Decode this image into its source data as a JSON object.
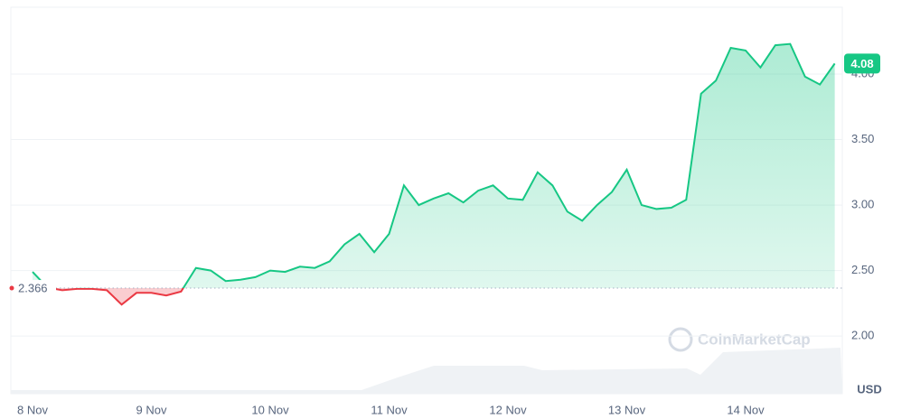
{
  "chart_data": {
    "type": "line",
    "categories": [
      "8 Nov",
      null,
      null,
      null,
      null,
      null,
      null,
      null,
      "9 Nov",
      null,
      null,
      null,
      null,
      null,
      null,
      null,
      "10 Nov",
      null,
      null,
      null,
      null,
      null,
      null,
      null,
      "11 Nov",
      null,
      null,
      null,
      null,
      null,
      null,
      null,
      "12 Nov",
      null,
      null,
      null,
      null,
      null,
      null,
      null,
      "13 Nov",
      null,
      null,
      null,
      null,
      null,
      null,
      null,
      "14 Nov",
      null,
      null,
      null,
      null,
      null,
      null
    ],
    "values": [
      2.49,
      2.37,
      2.35,
      2.36,
      2.36,
      2.35,
      2.24,
      2.33,
      2.33,
      2.31,
      2.34,
      2.52,
      2.5,
      2.42,
      2.43,
      2.45,
      2.5,
      2.49,
      2.53,
      2.52,
      2.57,
      2.7,
      2.78,
      2.64,
      2.78,
      3.15,
      3.0,
      3.05,
      3.09,
      3.02,
      3.11,
      3.15,
      3.05,
      3.04,
      3.25,
      3.15,
      2.95,
      2.88,
      3.0,
      3.1,
      3.27,
      3.0,
      2.97,
      2.98,
      3.04,
      3.85,
      3.95,
      4.2,
      4.18,
      4.05,
      4.22,
      4.23,
      3.98,
      3.92,
      4.08
    ],
    "up_color": "#16c784",
    "down_color": "#ea3943",
    "reference": 2.366,
    "ylim": [
      1.56,
      4.51
    ],
    "yticks": [
      {
        "value": 2,
        "label": "2.00"
      },
      {
        "value": 2.5,
        "label": "2.50"
      },
      {
        "value": 3,
        "label": "3.00"
      },
      {
        "value": 3.5,
        "label": "3.50"
      },
      {
        "value": 4,
        "label": "4.00"
      }
    ],
    "grid": true,
    "unit": "USD",
    "watermark": "CoinMarketCap"
  }
}
